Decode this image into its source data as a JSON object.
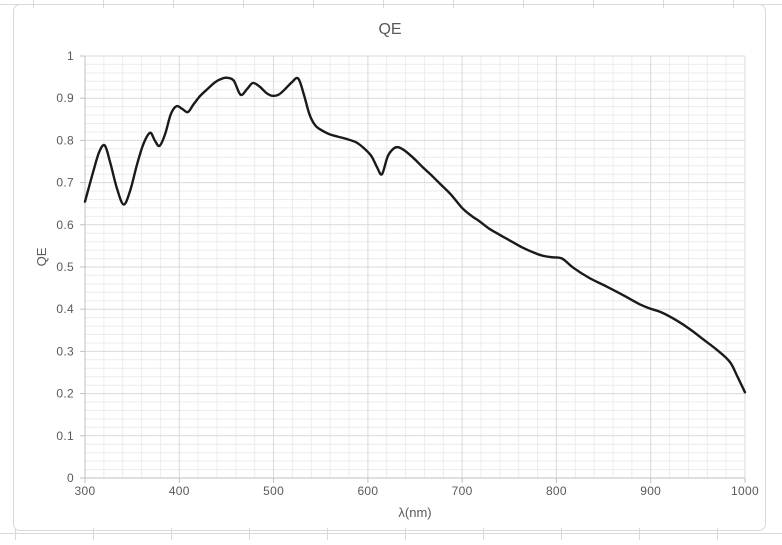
{
  "chart_data": {
    "type": "line",
    "title": "QE",
    "xlabel": "λ(nm)",
    "ylabel": "QE",
    "xlim": [
      300,
      1000
    ],
    "ylim": [
      0,
      1
    ],
    "x_ticks": [
      300,
      400,
      500,
      600,
      700,
      800,
      900,
      1000
    ],
    "y_ticks": [
      0,
      0.1,
      0.2,
      0.3,
      0.4,
      0.5,
      0.6,
      0.7,
      0.8,
      0.9,
      1
    ],
    "x_minor_step": 20,
    "y_minor_step": 0.02,
    "grid": "major and minor, both axes",
    "legend": false,
    "series": [
      {
        "name": "QE",
        "points": [
          [
            300,
            0.655
          ],
          [
            308,
            0.72
          ],
          [
            315,
            0.772
          ],
          [
            321,
            0.788
          ],
          [
            327,
            0.745
          ],
          [
            334,
            0.685
          ],
          [
            341,
            0.648
          ],
          [
            348,
            0.682
          ],
          [
            355,
            0.742
          ],
          [
            362,
            0.792
          ],
          [
            369,
            0.818
          ],
          [
            374,
            0.8
          ],
          [
            379,
            0.787
          ],
          [
            385,
            0.815
          ],
          [
            391,
            0.862
          ],
          [
            397,
            0.881
          ],
          [
            403,
            0.875
          ],
          [
            409,
            0.867
          ],
          [
            415,
            0.885
          ],
          [
            422,
            0.905
          ],
          [
            430,
            0.922
          ],
          [
            438,
            0.938
          ],
          [
            446,
            0.947
          ],
          [
            452,
            0.948
          ],
          [
            458,
            0.941
          ],
          [
            465,
            0.908
          ],
          [
            472,
            0.922
          ],
          [
            478,
            0.936
          ],
          [
            485,
            0.928
          ],
          [
            492,
            0.913
          ],
          [
            498,
            0.906
          ],
          [
            505,
            0.908
          ],
          [
            512,
            0.921
          ],
          [
            519,
            0.937
          ],
          [
            526,
            0.947
          ],
          [
            532,
            0.91
          ],
          [
            538,
            0.862
          ],
          [
            544,
            0.836
          ],
          [
            551,
            0.824
          ],
          [
            559,
            0.815
          ],
          [
            568,
            0.809
          ],
          [
            578,
            0.803
          ],
          [
            588,
            0.795
          ],
          [
            596,
            0.781
          ],
          [
            604,
            0.762
          ],
          [
            610,
            0.735
          ],
          [
            615,
            0.72
          ],
          [
            621,
            0.762
          ],
          [
            627,
            0.78
          ],
          [
            632,
            0.784
          ],
          [
            639,
            0.776
          ],
          [
            648,
            0.759
          ],
          [
            658,
            0.737
          ],
          [
            668,
            0.716
          ],
          [
            678,
            0.694
          ],
          [
            688,
            0.672
          ],
          [
            700,
            0.64
          ],
          [
            710,
            0.621
          ],
          [
            718,
            0.609
          ],
          [
            728,
            0.592
          ],
          [
            740,
            0.576
          ],
          [
            752,
            0.561
          ],
          [
            764,
            0.546
          ],
          [
            775,
            0.535
          ],
          [
            785,
            0.527
          ],
          [
            796,
            0.523
          ],
          [
            806,
            0.52
          ],
          [
            818,
            0.498
          ],
          [
            835,
            0.474
          ],
          [
            853,
            0.454
          ],
          [
            871,
            0.433
          ],
          [
            889,
            0.411
          ],
          [
            900,
            0.401
          ],
          [
            912,
            0.392
          ],
          [
            927,
            0.374
          ],
          [
            942,
            0.352
          ],
          [
            956,
            0.328
          ],
          [
            970,
            0.304
          ],
          [
            984,
            0.275
          ],
          [
            992,
            0.24
          ],
          [
            1000,
            0.203
          ]
        ]
      }
    ]
  },
  "colors": {
    "line": "#1a1a1a",
    "grid_major": "#d9d9d9",
    "grid_minor": "#ececec",
    "axis": "#c0c0c0",
    "text": "#595959",
    "frame_border": "#d9d9d9"
  }
}
